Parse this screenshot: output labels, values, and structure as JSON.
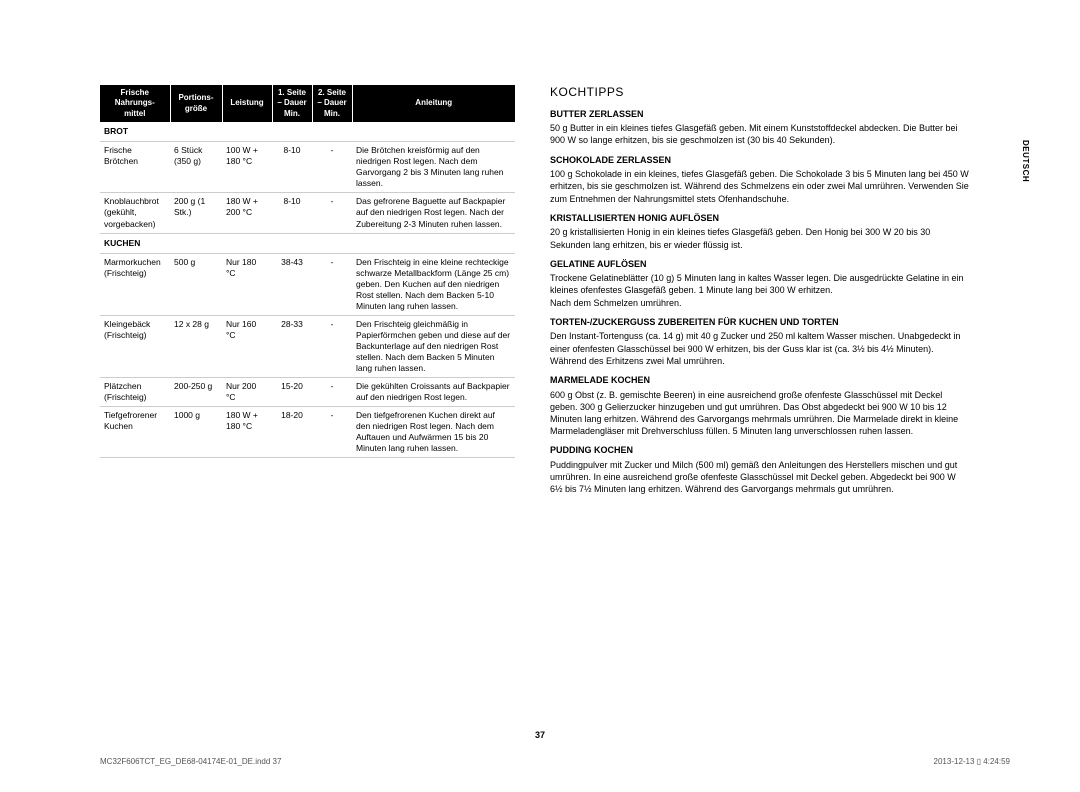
{
  "side_tab": "DEUTSCH",
  "page_number": "37",
  "footer": {
    "left": "MC32F606TCT_EG_DE68-04174E-01_DE.indd   37",
    "right": "2013-12-13   ▯ 4:24:59"
  },
  "table": {
    "headers": [
      "Frische Nahrungs-\nmittel",
      "Portions-\ngröße",
      "Leistung",
      "1. Seite\n– Dauer\nMin.",
      "2. Seite\n– Dauer\nMin.",
      "Anleitung"
    ],
    "sections": [
      {
        "label": "BROT",
        "rows": [
          {
            "c0": "Frische Brötchen",
            "c1": "6 Stück (350 g)",
            "c2": "100 W + 180 °C",
            "c3": "8-10",
            "c4": "-",
            "c5": "Die Brötchen kreisförmig auf den niedrigen Rost legen. Nach dem Garvorgang 2 bis 3 Minuten lang ruhen lassen."
          },
          {
            "c0": "Knoblauchbrot (gekühlt, vorgebacken)",
            "c1": "200 g (1 Stk.)",
            "c2": "180 W + 200 °C",
            "c3": "8-10",
            "c4": "-",
            "c5": "Das gefrorene Baguette auf Backpapier auf den niedrigen Rost legen. Nach der Zubereitung 2-3 Minuten ruhen lassen."
          }
        ]
      },
      {
        "label": "KUCHEN",
        "rows": [
          {
            "c0": "Marmorkuchen (Frischteig)",
            "c1": "500 g",
            "c2": "Nur 180 °C",
            "c3": "38-43",
            "c4": "-",
            "c5": "Den Frischteig in eine kleine rechteckige schwarze Metallbackform (Länge 25 cm) geben. Den Kuchen auf den niedrigen Rost stellen. Nach dem Backen 5-10 Minuten lang ruhen lassen."
          },
          {
            "c0": "Kleingebäck (Frischteig)",
            "c1": "12 x 28 g",
            "c2": "Nur 160 °C",
            "c3": "28-33",
            "c4": "-",
            "c5": "Den Frischteig gleichmäßig in Papierförmchen geben und diese auf der Backunterlage auf den niedrigen Rost stellen. Nach dem Backen 5 Minuten lang ruhen lassen."
          },
          {
            "c0": "Plätzchen (Frischteig)",
            "c1": "200-250 g",
            "c2": "Nur 200 °C",
            "c3": "15-20",
            "c4": "-",
            "c5": "Die gekühlten Croissants auf Backpapier auf den niedrigen Rost legen."
          },
          {
            "c0": "Tiefgefrorener Kuchen",
            "c1": "1000 g",
            "c2": "180 W + 180 °C",
            "c3": "18-20",
            "c4": "-",
            "c5": "Den tiefgefrorenen Kuchen direkt auf den niedrigen Rost legen. Nach dem Auftauen und Aufwärmen 15 bis 20 Minuten lang ruhen lassen."
          }
        ]
      }
    ]
  },
  "tips": {
    "title": "KOCHTIPPS",
    "items": [
      {
        "h": "BUTTER ZERLASSEN",
        "p": "50 g Butter in ein kleines tiefes Glasgefäß geben. Mit einem Kunststoffdeckel abdecken. Die Butter bei 900 W so lange erhitzen, bis sie geschmolzen ist (30 bis 40 Sekunden)."
      },
      {
        "h": "SCHOKOLADE ZERLASSEN",
        "p": "100 g Schokolade in ein kleines, tiefes Glasgefäß geben. Die Schokolade 3 bis 5 Minuten lang bei 450 W erhitzen, bis sie geschmolzen ist. Während des Schmelzens ein oder zwei Mal umrühren. Verwenden Sie zum Entnehmen der Nahrungsmittel stets Ofenhandschuhe."
      },
      {
        "h": "KRISTALLISIERTEN HONIG AUFLÖSEN",
        "p": "20 g kristallisierten Honig in ein kleines tiefes Glasgefäß geben. Den Honig bei 300 W 20 bis 30 Sekunden lang erhitzen, bis er wieder flüssig ist."
      },
      {
        "h": "GELATINE AUFLÖSEN",
        "p": "Trockene Gelatineblätter (10 g) 5 Minuten lang in kaltes Wasser legen. Die ausgedrückte Gelatine in ein kleines ofenfestes Glasgefäß geben. 1 Minute lang bei 300 W erhitzen.\nNach dem Schmelzen umrühren."
      },
      {
        "h": "TORTEN-/ZUCKERGUSS ZUBEREITEN FÜR KUCHEN UND TORTEN",
        "p": "Den Instant-Tortenguss (ca. 14 g) mit 40 g Zucker und 250 ml kaltem Wasser mischen. Unabgedeckt in einer ofenfesten Glasschüssel bei 900 W erhitzen, bis der Guss klar ist (ca. 3½ bis 4½ Minuten). Während des Erhitzens zwei Mal umrühren."
      },
      {
        "h": "MARMELADE KOCHEN",
        "p": "600 g Obst (z. B. gemischte Beeren) in eine ausreichend große ofenfeste Glasschüssel mit Deckel geben. 300 g Gelierzucker hinzugeben und gut umrühren. Das Obst abgedeckt bei 900 W 10 bis 12 Minuten lang erhitzen. Während des Garvorgangs mehrmals umrühren. Die Marmelade direkt in kleine Marmeladengläser mit Drehverschluss füllen. 5 Minuten lang unverschlossen ruhen lassen."
      },
      {
        "h": "PUDDING KOCHEN",
        "p": "Puddingpulver mit Zucker und Milch (500 ml) gemäß den Anleitungen des Herstellers mischen und gut umrühren. In eine ausreichend große ofenfeste Glasschüssel mit Deckel geben. Abgedeckt bei 900 W 6½ bis 7½ Minuten lang erhitzen. Während des Garvorgangs mehrmals gut umrühren."
      }
    ]
  }
}
